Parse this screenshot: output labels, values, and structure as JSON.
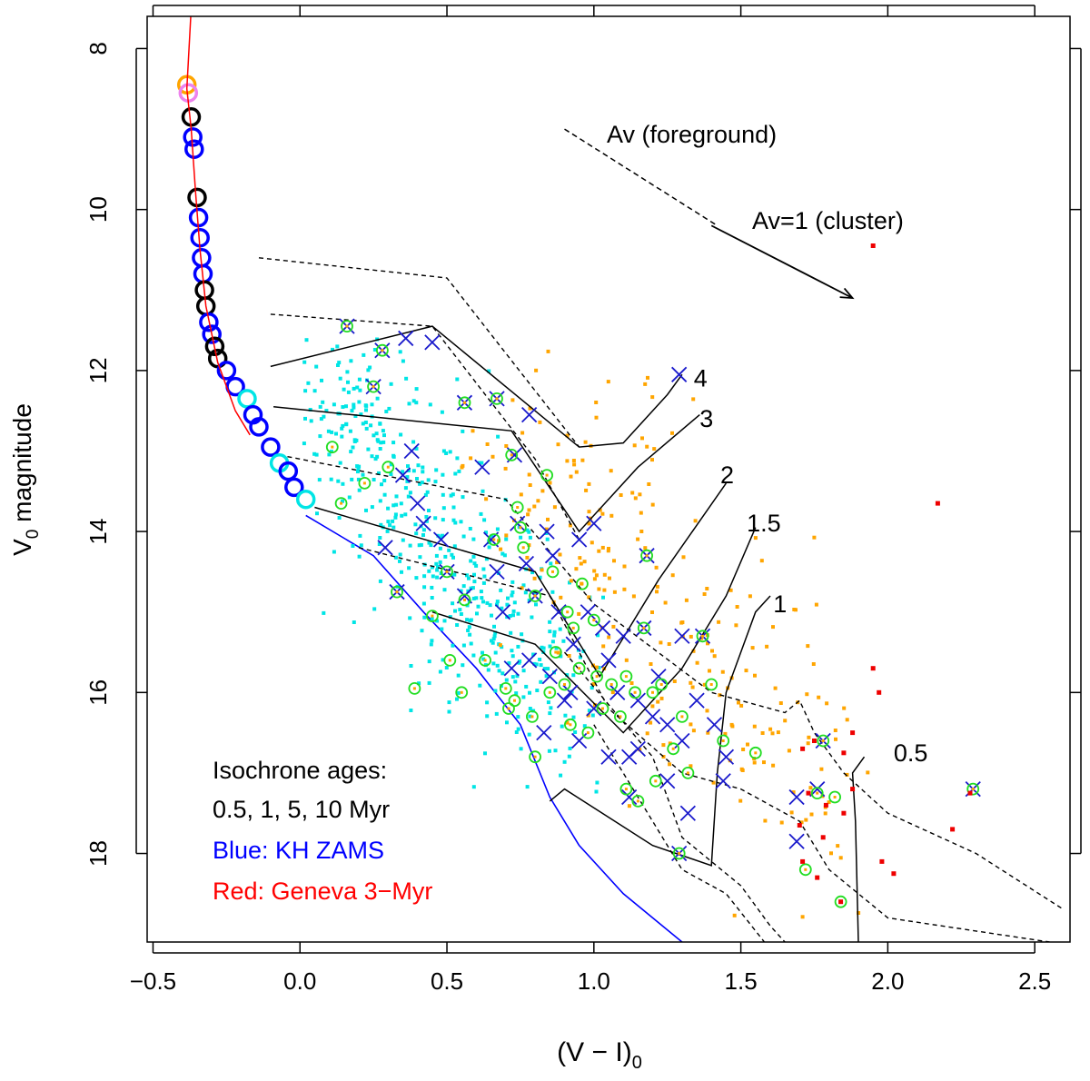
{
  "chart_data": {
    "type": "scatter",
    "xlabel": "(V − I)",
    "xlabel_sub": "0",
    "ylabel_main": "V",
    "ylabel_sub": "0",
    "ylabel_rest": " magnitude",
    "xlim": [
      -0.52,
      2.62
    ],
    "ylim": [
      19.1,
      7.6
    ],
    "xticks": [
      -0.5,
      0.0,
      0.5,
      1.0,
      1.5,
      2.0,
      2.5
    ],
    "xtick_labels": [
      "−0.5",
      "0.0",
      "0.5",
      "1.0",
      "1.5",
      "2.0",
      "2.5"
    ],
    "yticks": [
      8,
      10,
      12,
      14,
      16,
      18
    ],
    "ytick_labels": [
      "8",
      "10",
      "12",
      "14",
      "16",
      "18"
    ],
    "colors": {
      "axis": "#000000",
      "geneva": "#ff0000",
      "zams": "#0000ff",
      "cyan": "#00e5e5",
      "orange": "#ffa500",
      "green": "#22dd22",
      "blue_x": "#1a1acc",
      "red_pt": "#ee0000",
      "violet": "#ee82ee",
      "black": "#000000"
    },
    "legend": {
      "line1": "Isochrone ages:",
      "line2": "0.5, 1, 5, 10 Myr",
      "line3": "Blue: KH ZAMS",
      "line4": "Red: Geneva 3−Myr"
    },
    "annotations": {
      "av_foreground": "Av (foreground)",
      "av_cluster": "Av=1 (cluster)"
    },
    "av_foreground_line": [
      [
        0.9,
        9.0
      ],
      [
        1.42,
        10.2
      ]
    ],
    "av_cluster_arrow": [
      [
        1.4,
        10.2
      ],
      [
        1.88,
        11.1
      ]
    ],
    "mass_labels": [
      {
        "text": "4",
        "x": 1.34,
        "y": 12.1
      },
      {
        "text": "3",
        "x": 1.36,
        "y": 12.6
      },
      {
        "text": "2",
        "x": 1.43,
        "y": 13.3
      },
      {
        "text": "1.5",
        "x": 1.52,
        "y": 13.9
      },
      {
        "text": "1",
        "x": 1.61,
        "y": 14.9
      },
      {
        "text": "0.5",
        "x": 2.02,
        "y": 16.75
      }
    ],
    "geneva_curve": [
      [
        -0.37,
        7.5
      ],
      [
        -0.385,
        8.5
      ],
      [
        -0.37,
        9.0
      ],
      [
        -0.355,
        9.8
      ],
      [
        -0.34,
        10.5
      ],
      [
        -0.32,
        11.2
      ],
      [
        -0.28,
        11.9
      ],
      [
        -0.22,
        12.5
      ],
      [
        -0.17,
        12.8
      ]
    ],
    "zams_curve": [
      [
        0.02,
        13.8
      ],
      [
        0.25,
        14.3
      ],
      [
        0.42,
        15.0
      ],
      [
        0.6,
        15.7
      ],
      [
        0.75,
        16.4
      ],
      [
        0.85,
        17.3
      ],
      [
        0.95,
        17.9
      ],
      [
        1.1,
        18.5
      ],
      [
        1.3,
        19.1
      ]
    ],
    "solid_isochrones": [
      [
        [
          -0.1,
          11.95
        ],
        [
          0.45,
          11.45
        ],
        [
          0.95,
          12.95
        ],
        [
          1.1,
          12.9
        ],
        [
          1.25,
          12.3
        ],
        [
          1.3,
          12.05
        ]
      ],
      [
        [
          -0.09,
          12.45
        ],
        [
          0.72,
          12.75
        ],
        [
          0.95,
          14.0
        ],
        [
          1.15,
          13.2
        ],
        [
          1.36,
          12.55
        ]
      ],
      [
        [
          0.05,
          13.7
        ],
        [
          0.8,
          14.5
        ],
        [
          1.02,
          15.8
        ],
        [
          1.22,
          14.6
        ],
        [
          1.45,
          13.4
        ]
      ],
      [
        [
          0.45,
          15.0
        ],
        [
          0.8,
          15.4
        ],
        [
          1.1,
          16.5
        ],
        [
          1.3,
          15.7
        ],
        [
          1.45,
          14.8
        ],
        [
          1.55,
          13.95
        ]
      ],
      [
        [
          0.85,
          17.35
        ],
        [
          0.9,
          17.2
        ],
        [
          1.2,
          17.9
        ],
        [
          1.4,
          18.15
        ],
        [
          1.42,
          17.0
        ],
        [
          1.45,
          16.0
        ],
        [
          1.55,
          15.0
        ],
        [
          1.6,
          14.8
        ]
      ],
      [
        [
          1.9,
          19.1
        ],
        [
          1.89,
          17.6
        ],
        [
          1.88,
          17.0
        ],
        [
          1.92,
          16.8
        ]
      ]
    ],
    "dashed_isochrones": [
      [
        [
          -0.14,
          10.6
        ],
        [
          0.5,
          10.85
        ],
        [
          0.95,
          12.95
        ]
      ],
      [
        [
          -0.1,
          11.3
        ],
        [
          0.45,
          11.45
        ],
        [
          0.8,
          13.1
        ],
        [
          0.95,
          14.1
        ]
      ],
      [
        [
          -0.07,
          13.05
        ],
        [
          0.7,
          13.6
        ],
        [
          1.0,
          14.9
        ],
        [
          1.4,
          16.0
        ],
        [
          1.65,
          16.25
        ],
        [
          1.7,
          16.1
        ],
        [
          1.75,
          16.5
        ],
        [
          1.85,
          17.0
        ],
        [
          2.0,
          17.5
        ],
        [
          2.3,
          18.0
        ],
        [
          2.6,
          18.7
        ]
      ],
      [
        [
          0.2,
          14.2
        ],
        [
          0.85,
          14.8
        ],
        [
          1.05,
          16.2
        ],
        [
          1.3,
          17.0
        ],
        [
          1.5,
          17.2
        ],
        [
          1.7,
          17.6
        ],
        [
          1.8,
          18.2
        ],
        [
          2.0,
          18.8
        ],
        [
          2.55,
          19.1
        ]
      ],
      [
        [
          0.9,
          15.5
        ],
        [
          1.2,
          16.8
        ],
        [
          1.3,
          17.8
        ],
        [
          1.5,
          18.4
        ],
        [
          1.6,
          18.9
        ],
        [
          1.65,
          19.1
        ]
      ],
      [
        [
          1.0,
          16.4
        ],
        [
          1.3,
          18.2
        ],
        [
          1.45,
          18.5
        ],
        [
          1.58,
          19.1
        ]
      ]
    ],
    "hmp_circles": [
      {
        "x": -0.385,
        "y": 8.45,
        "color": "orange"
      },
      {
        "x": -0.38,
        "y": 8.55,
        "color": "violet"
      },
      {
        "x": -0.37,
        "y": 8.85,
        "color": "black"
      },
      {
        "x": -0.365,
        "y": 9.1,
        "color": "zams"
      },
      {
        "x": -0.36,
        "y": 9.25,
        "color": "zams"
      },
      {
        "x": -0.35,
        "y": 9.85,
        "color": "black"
      },
      {
        "x": -0.345,
        "y": 10.1,
        "color": "zams"
      },
      {
        "x": -0.34,
        "y": 10.35,
        "color": "zams"
      },
      {
        "x": -0.335,
        "y": 10.6,
        "color": "zams"
      },
      {
        "x": -0.33,
        "y": 10.8,
        "color": "zams"
      },
      {
        "x": -0.325,
        "y": 11.0,
        "color": "black"
      },
      {
        "x": -0.32,
        "y": 11.2,
        "color": "black"
      },
      {
        "x": -0.31,
        "y": 11.4,
        "color": "zams"
      },
      {
        "x": -0.3,
        "y": 11.55,
        "color": "zams"
      },
      {
        "x": -0.29,
        "y": 11.7,
        "color": "black"
      },
      {
        "x": -0.28,
        "y": 11.85,
        "color": "black"
      },
      {
        "x": -0.25,
        "y": 12.0,
        "color": "zams"
      },
      {
        "x": -0.22,
        "y": 12.2,
        "color": "zams"
      },
      {
        "x": -0.18,
        "y": 12.35,
        "color": "cyan"
      },
      {
        "x": -0.16,
        "y": 12.55,
        "color": "zams"
      },
      {
        "x": -0.14,
        "y": 12.7,
        "color": "zams"
      },
      {
        "x": -0.1,
        "y": 12.95,
        "color": "zams"
      },
      {
        "x": -0.07,
        "y": 13.15,
        "color": "cyan"
      },
      {
        "x": -0.04,
        "y": 13.25,
        "color": "zams"
      },
      {
        "x": -0.02,
        "y": 13.45,
        "color": "zams"
      },
      {
        "x": 0.02,
        "y": 13.6,
        "color": "cyan"
      }
    ],
    "x_markers": [
      [
        0.16,
        11.45
      ],
      [
        0.28,
        11.75
      ],
      [
        0.36,
        11.6
      ],
      [
        0.45,
        11.65
      ],
      [
        0.25,
        12.2
      ],
      [
        0.56,
        12.4
      ],
      [
        0.67,
        12.35
      ],
      [
        0.38,
        13.0
      ],
      [
        0.78,
        12.55
      ],
      [
        0.35,
        13.3
      ],
      [
        0.4,
        13.65
      ],
      [
        0.42,
        13.9
      ],
      [
        0.62,
        13.2
      ],
      [
        0.73,
        13.05
      ],
      [
        0.29,
        14.2
      ],
      [
        0.48,
        14.1
      ],
      [
        0.65,
        14.1
      ],
      [
        0.74,
        13.9
      ],
      [
        0.84,
        14.0
      ],
      [
        0.33,
        14.75
      ],
      [
        0.5,
        14.5
      ],
      [
        0.56,
        14.8
      ],
      [
        0.67,
        14.5
      ],
      [
        0.77,
        14.4
      ],
      [
        0.86,
        14.3
      ],
      [
        0.95,
        14.1
      ],
      [
        1.0,
        13.9
      ],
      [
        0.69,
        15.0
      ],
      [
        0.8,
        14.8
      ],
      [
        0.88,
        15.0
      ],
      [
        0.93,
        15.4
      ],
      [
        0.98,
        15.0
      ],
      [
        1.05,
        15.6
      ],
      [
        1.1,
        15.3
      ],
      [
        1.17,
        15.2
      ],
      [
        0.78,
        15.6
      ],
      [
        0.85,
        15.8
      ],
      [
        0.92,
        16.0
      ],
      [
        1.0,
        16.2
      ],
      [
        1.08,
        16.0
      ],
      [
        1.15,
        16.1
      ],
      [
        1.22,
        15.8
      ],
      [
        1.3,
        15.3
      ],
      [
        1.37,
        15.3
      ],
      [
        0.83,
        16.5
      ],
      [
        0.95,
        16.6
      ],
      [
        1.05,
        16.8
      ],
      [
        1.15,
        16.7
      ],
      [
        1.25,
        16.4
      ],
      [
        1.3,
        16.6
      ],
      [
        1.35,
        16.1
      ],
      [
        1.41,
        16.4
      ],
      [
        1.12,
        17.3
      ],
      [
        1.25,
        17.1
      ],
      [
        1.32,
        17.5
      ],
      [
        1.44,
        17.1
      ],
      [
        1.45,
        16.8
      ],
      [
        1.18,
        14.3
      ],
      [
        1.29,
        12.05
      ],
      [
        1.69,
        17.3
      ],
      [
        1.76,
        17.2
      ],
      [
        1.78,
        16.6
      ],
      [
        1.69,
        17.85
      ],
      [
        2.29,
        17.2
      ],
      [
        1.29,
        18.0
      ],
      [
        0.72,
        15.7
      ],
      [
        1.03,
        15.2
      ],
      [
        1.12,
        16.8
      ],
      [
        1.2,
        16.3
      ],
      [
        0.9,
        16.1
      ]
    ],
    "green_circles": [
      [
        0.16,
        11.45
      ],
      [
        0.28,
        11.75
      ],
      [
        0.25,
        12.2
      ],
      [
        0.56,
        12.4
      ],
      [
        0.67,
        12.35
      ],
      [
        0.11,
        12.95
      ],
      [
        0.22,
        13.4
      ],
      [
        0.3,
        13.2
      ],
      [
        0.14,
        13.65
      ],
      [
        0.5,
        14.5
      ],
      [
        0.56,
        14.85
      ],
      [
        0.33,
        14.75
      ],
      [
        0.45,
        15.05
      ],
      [
        0.51,
        15.6
      ],
      [
        0.55,
        16.0
      ],
      [
        0.39,
        15.95
      ],
      [
        0.66,
        14.1
      ],
      [
        0.72,
        13.05
      ],
      [
        0.74,
        13.7
      ],
      [
        0.75,
        13.95
      ],
      [
        0.76,
        14.2
      ],
      [
        0.84,
        13.3
      ],
      [
        0.8,
        14.8
      ],
      [
        0.86,
        14.5
      ],
      [
        0.91,
        15.0
      ],
      [
        0.96,
        14.65
      ],
      [
        0.93,
        15.2
      ],
      [
        1.0,
        15.1
      ],
      [
        0.87,
        15.5
      ],
      [
        0.9,
        15.9
      ],
      [
        0.95,
        15.7
      ],
      [
        1.01,
        15.8
      ],
      [
        1.06,
        15.9
      ],
      [
        1.11,
        15.8
      ],
      [
        1.17,
        15.2
      ],
      [
        0.79,
        16.3
      ],
      [
        0.85,
        16.0
      ],
      [
        0.92,
        16.4
      ],
      [
        0.98,
        16.5
      ],
      [
        1.03,
        16.2
      ],
      [
        1.09,
        16.3
      ],
      [
        1.14,
        16.0
      ],
      [
        1.2,
        16.0
      ],
      [
        1.23,
        15.9
      ],
      [
        1.3,
        16.3
      ],
      [
        1.18,
        14.3
      ],
      [
        1.37,
        15.3
      ],
      [
        1.4,
        15.9
      ],
      [
        1.27,
        16.7
      ],
      [
        1.32,
        17.0
      ],
      [
        1.21,
        17.1
      ],
      [
        1.15,
        17.35
      ],
      [
        1.11,
        17.2
      ],
      [
        1.29,
        18.0
      ],
      [
        1.55,
        16.75
      ],
      [
        1.44,
        16.6
      ],
      [
        1.72,
        18.2
      ],
      [
        1.82,
        17.3
      ],
      [
        1.84,
        18.6
      ],
      [
        1.78,
        16.6
      ],
      [
        1.76,
        17.25
      ],
      [
        2.29,
        17.2
      ],
      [
        0.71,
        16.2
      ],
      [
        0.7,
        15.95
      ],
      [
        0.73,
        16.1
      ],
      [
        0.63,
        15.6
      ],
      [
        0.8,
        16.8
      ]
    ],
    "red_points": [
      [
        1.95,
        10.45
      ],
      [
        2.17,
        13.65
      ],
      [
        1.95,
        15.7
      ],
      [
        1.97,
        16.0
      ],
      [
        1.88,
        16.5
      ],
      [
        1.85,
        16.75
      ],
      [
        1.75,
        16.6
      ],
      [
        1.71,
        16.7
      ],
      [
        1.73,
        17.25
      ],
      [
        1.79,
        17.4
      ],
      [
        1.85,
        17.5
      ],
      [
        1.78,
        17.8
      ],
      [
        1.7,
        17.65
      ],
      [
        1.71,
        18.1
      ],
      [
        1.76,
        18.3
      ],
      [
        1.84,
        18.6
      ],
      [
        1.98,
        18.1
      ],
      [
        2.02,
        18.25
      ],
      [
        2.22,
        17.7
      ],
      [
        1.88,
        17.2
      ],
      [
        2.28,
        17.25
      ]
    ],
    "cyan_seed": 1234,
    "orange_seed": 5678
  }
}
